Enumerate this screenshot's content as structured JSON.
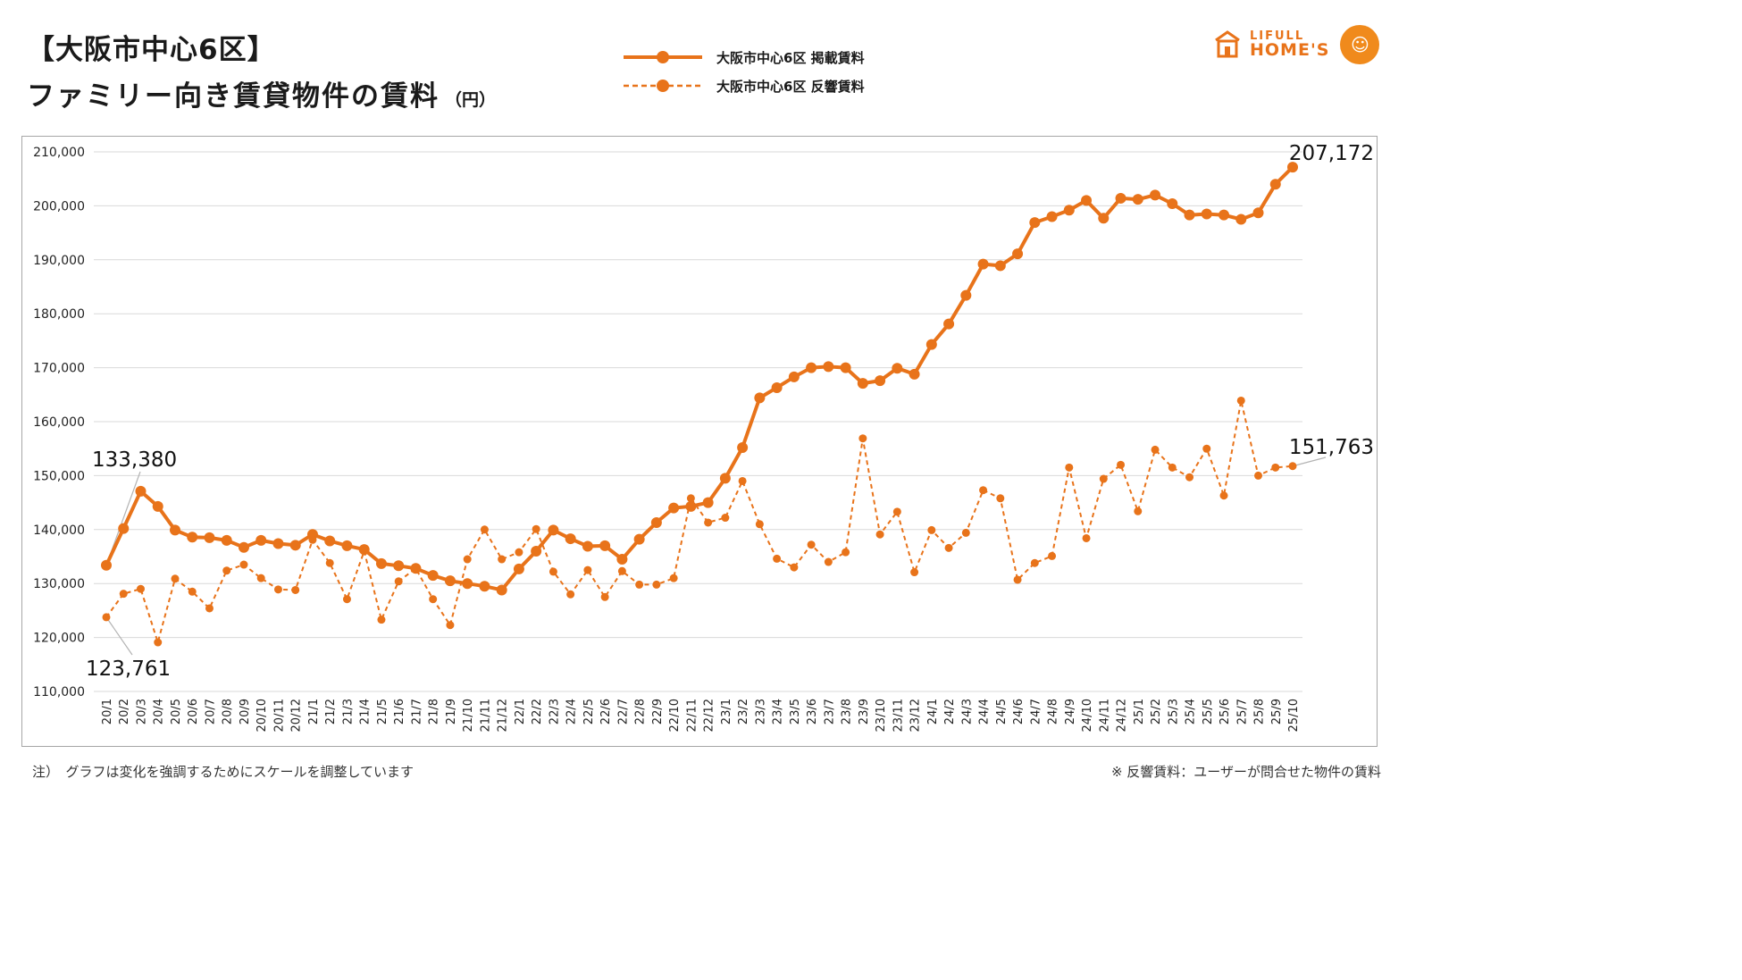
{
  "header": {
    "title_line1": "【大阪市中心6区】",
    "title_line2": "ファミリー向き賃貸物件の賃料",
    "unit": "（円）"
  },
  "logo": {
    "line1": "LIFULL",
    "line2": "HOME'S"
  },
  "notes": {
    "left": "注）　グラフは変化を強調するためにスケールを調整しています",
    "right": "※ 反響賃料：ユーザーが問合せた物件の賃料"
  },
  "colors": {
    "accent": "#e8731a",
    "grid": "#d9d9d9",
    "frame": "#a6a6a6",
    "callout": "#b3b3b3"
  },
  "chart_data": {
    "type": "line",
    "ylim": [
      110000,
      210000
    ],
    "yticks": [
      110000,
      120000,
      130000,
      140000,
      150000,
      160000,
      170000,
      180000,
      190000,
      200000,
      210000
    ],
    "ytick_labels": [
      "110,000",
      "120,000",
      "130,000",
      "140,000",
      "150,000",
      "160,000",
      "170,000",
      "180,000",
      "190,000",
      "200,000",
      "210,000"
    ],
    "grid": true,
    "legend_position": "top-center",
    "categories": [
      "20/1",
      "20/2",
      "20/3",
      "20/4",
      "20/5",
      "20/6",
      "20/7",
      "20/8",
      "20/9",
      "20/10",
      "20/11",
      "20/12",
      "21/1",
      "21/2",
      "21/3",
      "21/4",
      "21/5",
      "21/6",
      "21/7",
      "21/8",
      "21/9",
      "21/10",
      "21/11",
      "21/12",
      "22/1",
      "22/2",
      "22/3",
      "22/4",
      "22/5",
      "22/6",
      "22/7",
      "22/8",
      "22/9",
      "22/10",
      "22/11",
      "22/12",
      "23/1",
      "23/2",
      "23/3",
      "23/4",
      "23/5",
      "23/6",
      "23/7",
      "23/8",
      "23/9",
      "23/10",
      "23/11",
      "23/12",
      "24/1",
      "24/2",
      "24/3",
      "24/4",
      "24/5",
      "24/6",
      "24/7",
      "24/8",
      "24/9",
      "24/10",
      "24/11",
      "24/12",
      "25/1",
      "25/2",
      "25/3",
      "25/4",
      "25/5",
      "25/6",
      "25/7",
      "25/8",
      "25/9",
      "25/10"
    ],
    "series": [
      {
        "name": "大阪市中心6区 掲載賃料",
        "style": "solid",
        "values": [
          133380,
          140200,
          147100,
          144300,
          139900,
          138600,
          138500,
          138000,
          136700,
          138000,
          137400,
          137100,
          139100,
          137900,
          137000,
          136300,
          133700,
          133300,
          132800,
          131500,
          130500,
          130000,
          129500,
          128800,
          132700,
          136000,
          139900,
          138300,
          136900,
          137000,
          134500,
          138200,
          141300,
          144000,
          144300,
          145000,
          149500,
          155200,
          164400,
          166300,
          168300,
          170000,
          170200,
          170000,
          167100,
          167600,
          169900,
          168800,
          174300,
          178100,
          183400,
          189200,
          188900,
          191100,
          196900,
          198000,
          199200,
          201000,
          197700,
          201400,
          201200,
          202000,
          200400,
          198300,
          198500,
          198300,
          197500,
          198700,
          204000,
          207172
        ]
      },
      {
        "name": "大阪市中心6区 反響賃料",
        "style": "dashed",
        "values": [
          123761,
          128100,
          129000,
          119100,
          130900,
          128500,
          125400,
          132400,
          133500,
          131000,
          128900,
          128800,
          138100,
          133800,
          127100,
          136000,
          123300,
          130400,
          132800,
          127100,
          122300,
          134500,
          140000,
          134500,
          135800,
          140100,
          132200,
          128000,
          132500,
          127500,
          132300,
          129800,
          129800,
          131000,
          145800,
          141300,
          142200,
          149000,
          141000,
          134600,
          133000,
          137200,
          134000,
          135800,
          156900,
          139100,
          143300,
          132100,
          139900,
          136600,
          139400,
          147300,
          145800,
          130700,
          133800,
          135100,
          151500,
          138400,
          149400,
          152000,
          143400,
          154800,
          151500,
          149700,
          155000,
          146300,
          163900,
          150000,
          151500,
          151763
        ]
      }
    ],
    "annotations": [
      {
        "text": "133,380"
      },
      {
        "text": "207,172"
      },
      {
        "text": "123,761"
      },
      {
        "text": "151,763"
      }
    ]
  }
}
